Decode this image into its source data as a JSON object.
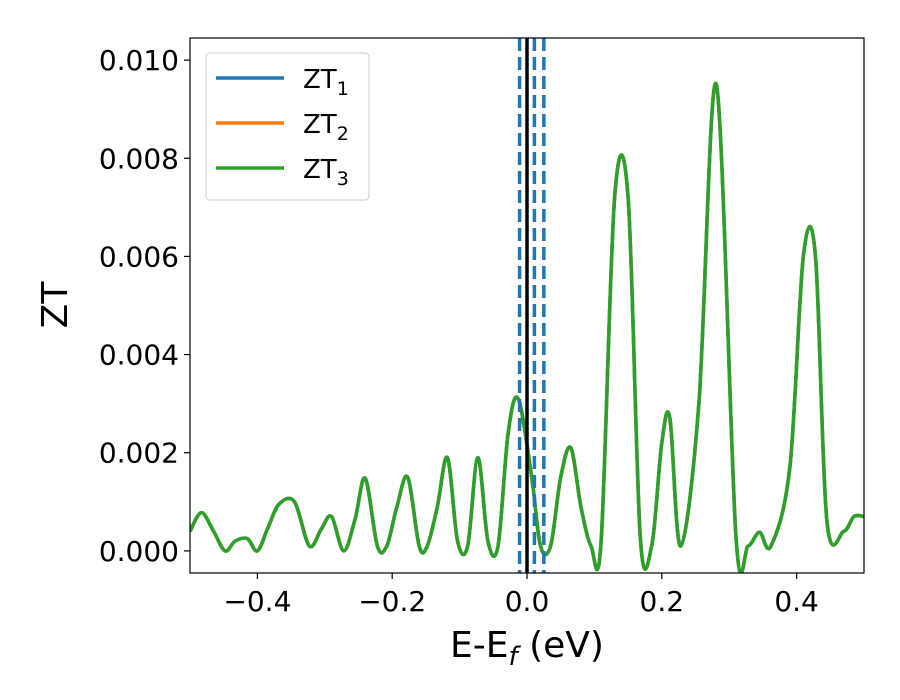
{
  "chart_data": {
    "type": "line",
    "xlabel": {
      "main": "E-E",
      "sub": "f",
      "suffix": " (eV)"
    },
    "ylabel": "ZT",
    "xlim": [
      -0.5,
      0.5
    ],
    "ylim": [
      -0.00045,
      0.01045
    ],
    "xticks": [
      -0.4,
      -0.2,
      0.0,
      0.2,
      0.4
    ],
    "xtick_labels": [
      "−0.4",
      "−0.2",
      "0.0",
      "0.2",
      "0.4"
    ],
    "yticks": [
      0.0,
      0.002,
      0.004,
      0.006,
      0.008,
      0.01
    ],
    "ytick_labels": [
      "0.000",
      "0.002",
      "0.004",
      "0.006",
      "0.008",
      "0.010"
    ],
    "legend_position": "top-left",
    "grid": false,
    "series": [
      {
        "name": "ZT1",
        "label_main": "ZT",
        "label_sub": "1",
        "color": "#1f77b4",
        "x": [
          -0.5,
          -0.483,
          -0.465,
          -0.448,
          -0.433,
          -0.415,
          -0.4,
          -0.385,
          -0.368,
          -0.345,
          -0.323,
          -0.305,
          -0.29,
          -0.272,
          -0.255,
          -0.24,
          -0.222,
          -0.208,
          -0.193,
          -0.177,
          -0.16,
          -0.148,
          -0.133,
          -0.118,
          -0.103,
          -0.088,
          -0.073,
          -0.058,
          -0.043,
          -0.028,
          -0.013,
          0.007,
          0.02,
          0.035,
          0.05,
          0.065,
          0.08,
          0.095,
          0.11,
          0.13,
          0.15,
          0.168,
          0.185,
          0.2,
          0.212,
          0.228,
          0.255,
          0.281,
          0.31,
          0.328,
          0.345,
          0.362,
          0.39,
          0.41,
          0.428,
          0.445,
          0.47,
          0.485,
          0.5
        ],
        "y": [
          0.0004,
          0.00078,
          0.0004,
          0.0,
          0.0002,
          0.00025,
          0.0,
          0.00045,
          0.00095,
          0.001,
          0.0001,
          0.00045,
          0.0007,
          0.0,
          0.00065,
          0.00148,
          0.0001,
          0.0001,
          0.0009,
          0.0015,
          0.0001,
          0.0001,
          0.0009,
          0.0019,
          0.0002,
          0.0001,
          0.0019,
          0.0002,
          0.0001,
          0.0024,
          0.0031,
          0.0015,
          0.0001,
          0.0001,
          0.0015,
          0.0021,
          0.0009,
          0.0001,
          0.0002,
          0.0072,
          0.0072,
          0.0003,
          0.0001,
          0.0022,
          0.0027,
          0.0001,
          0.003,
          0.0095,
          0.0003,
          0.0001,
          0.00038,
          0.0001,
          0.0017,
          0.006,
          0.006,
          0.0006,
          0.0004,
          0.0007,
          0.0007
        ]
      },
      {
        "name": "ZT2",
        "label_main": "ZT",
        "label_sub": "2",
        "color": "#ff7f0e",
        "x": [
          -0.5,
          -0.483,
          -0.465,
          -0.448,
          -0.433,
          -0.415,
          -0.4,
          -0.385,
          -0.368,
          -0.345,
          -0.323,
          -0.305,
          -0.29,
          -0.272,
          -0.255,
          -0.24,
          -0.222,
          -0.208,
          -0.193,
          -0.177,
          -0.16,
          -0.148,
          -0.133,
          -0.118,
          -0.103,
          -0.088,
          -0.073,
          -0.058,
          -0.043,
          -0.028,
          -0.013,
          0.007,
          0.02,
          0.035,
          0.05,
          0.065,
          0.08,
          0.095,
          0.11,
          0.13,
          0.15,
          0.168,
          0.185,
          0.2,
          0.212,
          0.228,
          0.255,
          0.281,
          0.31,
          0.328,
          0.345,
          0.362,
          0.39,
          0.41,
          0.428,
          0.445,
          0.47,
          0.485,
          0.5
        ],
        "y": [
          0.0004,
          0.00078,
          0.0004,
          0.0,
          0.0002,
          0.00025,
          0.0,
          0.00045,
          0.00095,
          0.001,
          0.0001,
          0.00045,
          0.0007,
          0.0,
          0.00065,
          0.00148,
          0.0001,
          0.0001,
          0.0009,
          0.0015,
          0.0001,
          0.0001,
          0.0009,
          0.0019,
          0.0002,
          0.0001,
          0.0019,
          0.0002,
          0.0001,
          0.0024,
          0.0031,
          0.0015,
          0.0001,
          0.0001,
          0.0015,
          0.0021,
          0.0009,
          0.0001,
          0.0002,
          0.0072,
          0.0072,
          0.0003,
          0.0001,
          0.0022,
          0.0027,
          0.0001,
          0.003,
          0.0095,
          0.0003,
          0.0001,
          0.00038,
          0.0001,
          0.0017,
          0.006,
          0.006,
          0.0006,
          0.0004,
          0.0007,
          0.0007
        ]
      },
      {
        "name": "ZT3",
        "label_main": "ZT",
        "label_sub": "3",
        "color": "#2ca02c",
        "x": [
          -0.5,
          -0.483,
          -0.465,
          -0.448,
          -0.433,
          -0.415,
          -0.4,
          -0.385,
          -0.368,
          -0.345,
          -0.323,
          -0.305,
          -0.29,
          -0.272,
          -0.255,
          -0.24,
          -0.222,
          -0.208,
          -0.193,
          -0.177,
          -0.16,
          -0.148,
          -0.133,
          -0.118,
          -0.103,
          -0.088,
          -0.073,
          -0.058,
          -0.043,
          -0.028,
          -0.013,
          0.007,
          0.02,
          0.035,
          0.05,
          0.065,
          0.08,
          0.095,
          0.11,
          0.13,
          0.15,
          0.168,
          0.185,
          0.2,
          0.212,
          0.228,
          0.255,
          0.281,
          0.31,
          0.328,
          0.345,
          0.362,
          0.39,
          0.41,
          0.428,
          0.445,
          0.47,
          0.485,
          0.5
        ],
        "y": [
          0.0004,
          0.00078,
          0.0004,
          0.0,
          0.0002,
          0.00025,
          0.0,
          0.00045,
          0.00095,
          0.001,
          0.0001,
          0.00045,
          0.0007,
          0.0,
          0.00065,
          0.00148,
          0.0001,
          0.0001,
          0.0009,
          0.0015,
          0.0001,
          0.0001,
          0.0009,
          0.0019,
          0.0002,
          0.0001,
          0.0019,
          0.0002,
          0.0001,
          0.0024,
          0.0031,
          0.0015,
          0.0001,
          0.0001,
          0.0015,
          0.0021,
          0.0009,
          0.0001,
          0.0002,
          0.0072,
          0.0072,
          0.0003,
          0.0001,
          0.0022,
          0.0027,
          0.0001,
          0.003,
          0.0095,
          0.0003,
          0.0001,
          0.00038,
          0.0001,
          0.0017,
          0.006,
          0.006,
          0.0006,
          0.0004,
          0.0007,
          0.0007
        ]
      }
    ],
    "vlines": [
      {
        "x": 0.0,
        "style": "solid",
        "color": "#000000"
      },
      {
        "x": -0.011,
        "style": "dashed",
        "color": "#1f77b4"
      },
      {
        "x": 0.011,
        "style": "dashed",
        "color": "#1f77b4"
      },
      {
        "x": 0.025,
        "style": "dashed",
        "color": "#1f77b4"
      }
    ]
  }
}
